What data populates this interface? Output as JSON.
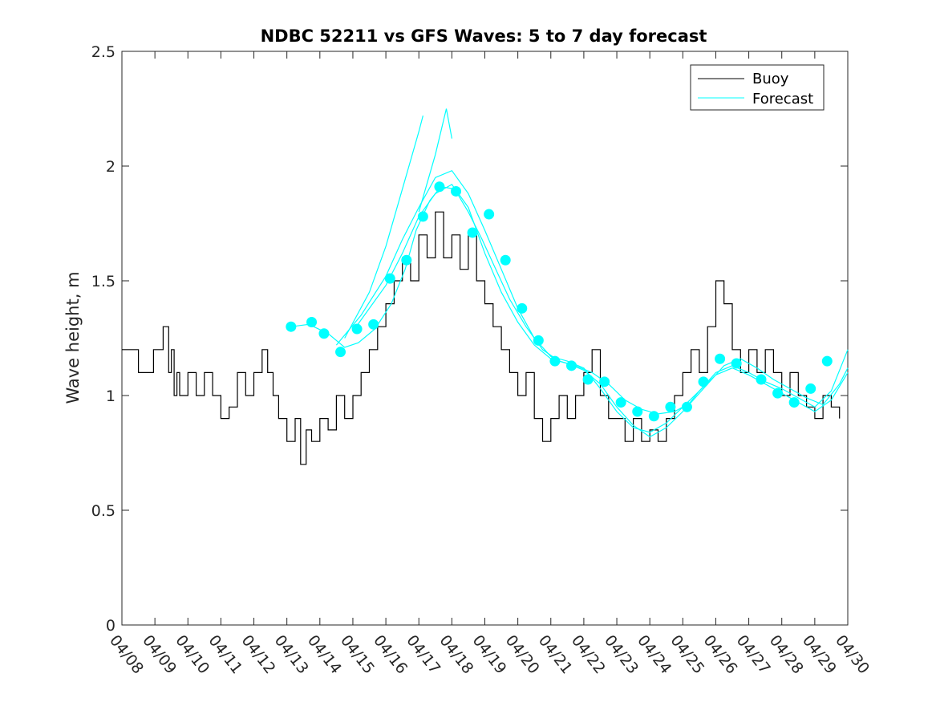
{
  "chart_data": {
    "type": "line",
    "title": "NDBC 52211 vs GFS Waves: 5 to 7 day forecast",
    "xlabel": "",
    "ylabel": "Wave height, m",
    "xlim": [
      "04/08",
      "04/30"
    ],
    "ylim": [
      0,
      2.5
    ],
    "x_ticks": [
      "04/08",
      "04/09",
      "04/10",
      "04/11",
      "04/12",
      "04/13",
      "04/14",
      "04/15",
      "04/16",
      "04/17",
      "04/18",
      "04/19",
      "04/20",
      "04/21",
      "04/22",
      "04/23",
      "04/24",
      "04/25",
      "04/26",
      "04/27",
      "04/28",
      "04/29",
      "04/30"
    ],
    "y_ticks": [
      "0",
      "0.5",
      "1",
      "1.5",
      "2",
      "2.5"
    ],
    "grid": false,
    "legend_position": "top-right",
    "colors": {
      "buoy": "#000000",
      "forecast": "#00ffff"
    },
    "series": [
      {
        "name": "Buoy",
        "style": "line",
        "x": [
          "04/08 00:00",
          "04/08 12:00",
          "04/08 23:00",
          "04/09 06:00",
          "04/09 10:00",
          "04/09 12:00",
          "04/09 14:00",
          "04/09 16:00",
          "04/09 18:00",
          "04/10 00:00",
          "04/10 06:00",
          "04/10 12:00",
          "04/10 18:00",
          "04/11 00:00",
          "04/11 06:00",
          "04/11 12:00",
          "04/11 18:00",
          "04/12 00:00",
          "04/12 06:00",
          "04/12 10:00",
          "04/12 14:00",
          "04/12 18:00",
          "04/13 00:00",
          "04/13 06:00",
          "04/13 10:00",
          "04/13 14:00",
          "04/13 18:00",
          "04/14 00:00",
          "04/14 06:00",
          "04/14 12:00",
          "04/14 18:00",
          "04/15 00:00",
          "04/15 06:00",
          "04/15 12:00",
          "04/15 18:00",
          "04/16 00:00",
          "04/16 06:00",
          "04/16 12:00",
          "04/16 18:00",
          "04/17 00:00",
          "04/17 06:00",
          "04/17 12:00",
          "04/17 18:00",
          "04/18 00:00",
          "04/18 06:00",
          "04/18 12:00",
          "04/18 18:00",
          "04/19 00:00",
          "04/19 06:00",
          "04/19 12:00",
          "04/19 18:00",
          "04/20 00:00",
          "04/20 06:00",
          "04/20 12:00",
          "04/20 18:00",
          "04/21 00:00",
          "04/21 06:00",
          "04/21 12:00",
          "04/21 18:00",
          "04/22 00:00",
          "04/22 06:00",
          "04/22 12:00",
          "04/22 18:00",
          "04/23 00:00",
          "04/23 06:00",
          "04/23 12:00",
          "04/23 18:00",
          "04/24 00:00",
          "04/24 06:00",
          "04/24 12:00",
          "04/24 18:00",
          "04/25 00:00",
          "04/25 06:00",
          "04/25 12:00",
          "04/25 18:00",
          "04/26 00:00",
          "04/26 06:00",
          "04/26 12:00",
          "04/26 18:00",
          "04/27 00:00",
          "04/27 06:00",
          "04/27 12:00",
          "04/27 18:00",
          "04/28 00:00",
          "04/28 06:00",
          "04/28 12:00",
          "04/28 18:00",
          "04/29 00:00",
          "04/29 06:00",
          "04/29 12:00",
          "04/29 18:00"
        ],
        "y": [
          1.2,
          1.1,
          1.2,
          1.3,
          1.1,
          1.2,
          1.0,
          1.1,
          1.0,
          1.1,
          1.0,
          1.1,
          1.0,
          0.9,
          0.95,
          1.1,
          1.0,
          1.1,
          1.2,
          1.1,
          1.0,
          0.9,
          0.8,
          0.9,
          0.7,
          0.85,
          0.8,
          0.9,
          0.85,
          1.0,
          0.9,
          1.0,
          1.1,
          1.2,
          1.3,
          1.4,
          1.5,
          1.6,
          1.5,
          1.7,
          1.6,
          1.8,
          1.6,
          1.7,
          1.55,
          1.7,
          1.5,
          1.4,
          1.3,
          1.2,
          1.1,
          1.0,
          1.1,
          0.9,
          0.8,
          0.9,
          1.0,
          0.9,
          1.0,
          1.1,
          1.2,
          1.0,
          0.9,
          0.9,
          0.8,
          0.9,
          0.8,
          0.85,
          0.8,
          0.9,
          1.0,
          1.1,
          1.2,
          1.1,
          1.3,
          1.5,
          1.4,
          1.2,
          1.1,
          1.2,
          1.1,
          1.2,
          1.1,
          1.0,
          1.1,
          1.0,
          0.95,
          0.9,
          1.0,
          0.95,
          0.9
        ]
      },
      {
        "name": "Forecast",
        "style": "line",
        "lines": [
          {
            "x": [
              "04/13 03:00",
              "04/13 16:00",
              "04/14 06:00",
              "04/14 18:00",
              "04/15 04:00",
              "04/15 16:00",
              "04/16 04:00",
              "04/16 14:00",
              "04/16 22:00",
              "04/17 08:00",
              "04/17 16:00",
              "04/18 02:00",
              "04/18 12:00",
              "04/18 22:00",
              "04/19 08:00",
              "04/19 18:00",
              "04/20 06:00",
              "04/20 18:00",
              "04/21 06:00",
              "04/21 18:00",
              "04/22 06:00",
              "04/22 18:00",
              "04/23 06:00",
              "04/23 18:00",
              "04/24 06:00",
              "04/24 18:00",
              "04/25 06:00",
              "04/25 18:00",
              "04/26 06:00",
              "04/26 18:00",
              "04/27 06:00",
              "04/27 18:00",
              "04/28 06:00",
              "04/28 18:00",
              "04/29 06:00",
              "04/29 18:00",
              "04/30 00:00"
            ],
            "y": [
              1.3,
              1.31,
              1.27,
              1.21,
              1.23,
              1.29,
              1.4,
              1.55,
              1.72,
              1.85,
              1.91,
              1.9,
              1.8,
              1.68,
              1.55,
              1.42,
              1.3,
              1.2,
              1.15,
              1.13,
              1.1,
              1.05,
              0.98,
              0.94,
              0.92,
              0.93,
              0.97,
              1.05,
              1.13,
              1.16,
              1.12,
              1.07,
              1.03,
              0.99,
              0.96,
              1.05,
              1.12
            ]
          },
          {
            "x": [
              "04/14 18:00",
              "04/15 12:00",
              "04/16 00:00",
              "04/16 12:00",
              "04/17 00:00",
              "04/17 03:00"
            ],
            "y": [
              1.25,
              1.45,
              1.65,
              1.9,
              2.15,
              2.22
            ]
          },
          {
            "x": [
              "04/17 00:00",
              "04/17 12:00",
              "04/17 20:00",
              "04/18 00:00"
            ],
            "y": [
              1.8,
              2.05,
              2.25,
              2.12
            ]
          },
          {
            "x": [
              "04/14 12:00",
              "04/15 06:00",
              "04/16 00:00",
              "04/16 12:00",
              "04/17 00:00",
              "04/17 12:00",
              "04/18 00:00",
              "04/18 12:00",
              "04/19 00:00",
              "04/19 12:00",
              "04/20 00:00",
              "04/20 12:00",
              "04/21 00:00",
              "04/21 12:00",
              "04/22 00:00",
              "04/22 12:00",
              "04/23 00:00",
              "04/23 12:00",
              "04/24 00:00",
              "04/24 12:00",
              "04/25 00:00",
              "04/25 12:00",
              "04/26 00:00",
              "04/26 12:00",
              "04/27 00:00",
              "04/27 12:00",
              "04/28 00:00",
              "04/28 12:00",
              "04/29 00:00",
              "04/29 12:00",
              "04/30 00:00"
            ],
            "y": [
              1.22,
              1.35,
              1.52,
              1.68,
              1.82,
              1.95,
              1.98,
              1.88,
              1.72,
              1.55,
              1.38,
              1.25,
              1.17,
              1.15,
              1.12,
              1.03,
              0.93,
              0.86,
              0.84,
              0.88,
              0.95,
              1.02,
              1.1,
              1.13,
              1.1,
              1.06,
              1.03,
              0.99,
              0.95,
              1.02,
              1.2
            ]
          },
          {
            "x": [
              "04/15 00:00",
              "04/16 00:00",
              "04/16 12:00",
              "04/17 00:00",
              "04/17 12:00",
              "04/18 00:00",
              "04/18 12:00",
              "04/19 00:00",
              "04/19 12:00",
              "04/20 00:00",
              "04/20 12:00",
              "04/21 00:00",
              "04/21 12:00",
              "04/22 00:00",
              "04/22 12:00",
              "04/23 00:00",
              "04/23 12:00",
              "04/24 00:00",
              "04/24 12:00",
              "04/25 00:00",
              "04/25 12:00",
              "04/26 00:00",
              "04/26 12:00",
              "04/27 00:00",
              "04/27 12:00",
              "04/28 00:00",
              "04/28 12:00",
              "04/29 00:00",
              "04/29 12:00",
              "04/30 00:00"
            ],
            "y": [
              1.28,
              1.48,
              1.62,
              1.78,
              1.88,
              1.92,
              1.82,
              1.62,
              1.45,
              1.32,
              1.22,
              1.16,
              1.14,
              1.11,
              1.05,
              0.95,
              0.87,
              0.82,
              0.86,
              0.93,
              1.02,
              1.09,
              1.12,
              1.09,
              1.05,
              1.01,
              0.97,
              0.93,
              0.98,
              1.1
            ]
          }
        ]
      },
      {
        "name": "Forecast markers",
        "style": "markers",
        "x": [
          "04/13 03:00",
          "04/13 18:00",
          "04/14 03:00",
          "04/14 15:00",
          "04/15 03:00",
          "04/15 15:00",
          "04/16 03:00",
          "04/16 15:00",
          "04/17 03:00",
          "04/17 15:00",
          "04/18 03:00",
          "04/18 15:00",
          "04/19 03:00",
          "04/19 15:00",
          "04/20 03:00",
          "04/20 15:00",
          "04/21 03:00",
          "04/21 15:00",
          "04/22 03:00",
          "04/22 15:00",
          "04/23 03:00",
          "04/23 15:00",
          "04/24 03:00",
          "04/24 15:00",
          "04/25 03:00",
          "04/25 15:00",
          "04/26 03:00",
          "04/26 15:00",
          "04/27 09:00",
          "04/27 21:00",
          "04/28 09:00",
          "04/28 21:00",
          "04/29 09:00"
        ],
        "y": [
          1.3,
          1.32,
          1.27,
          1.19,
          1.29,
          1.31,
          1.51,
          1.59,
          1.78,
          1.91,
          1.89,
          1.71,
          1.79,
          1.59,
          1.38,
          1.24,
          1.15,
          1.13,
          1.07,
          1.06,
          0.97,
          0.93,
          0.91,
          0.95,
          0.95,
          1.06,
          1.16,
          1.14,
          1.07,
          1.01,
          0.97,
          1.03,
          1.15
        ]
      }
    ]
  }
}
